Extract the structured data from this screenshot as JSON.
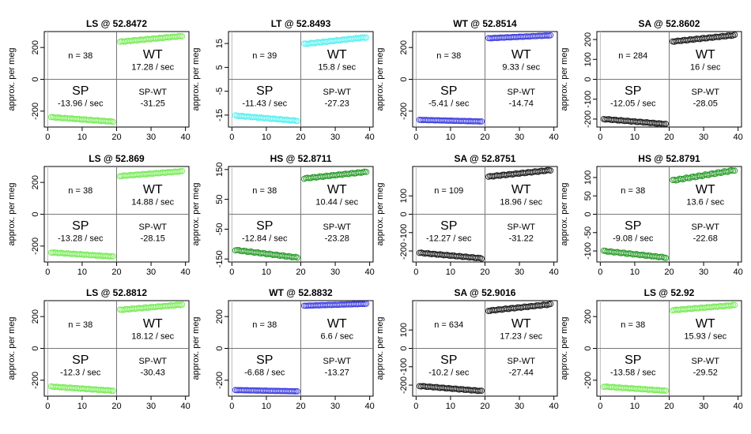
{
  "chart_data": [
    {
      "type": "scatter",
      "title": "LS @ 52.8472",
      "ylabel": "approx. per meg",
      "color": "#7CEB5C",
      "xlim": [
        -1,
        41
      ],
      "ylim": [
        -300,
        300
      ],
      "yticks": [
        -200,
        0,
        200
      ],
      "xticks": [
        0,
        10,
        20,
        30,
        40
      ],
      "n_label": "n = 38",
      "wt_label": "WT",
      "wt_rate": "17.28 / sec",
      "sp_label": "SP",
      "sp_rate": "-13.96 / sec",
      "spwt_label": "SP-WT",
      "spwt_value": "-31.25",
      "left": {
        "x_start": 1,
        "x_end": 19,
        "y_start": -238,
        "y_end": -266
      },
      "right": {
        "x_start": 21,
        "x_end": 39,
        "y_start": 236,
        "y_end": 272
      }
    },
    {
      "type": "scatter",
      "title": "LT @ 52.8493",
      "ylabel": "approx. per meg",
      "color": "#5CF0F0",
      "xlim": [
        -1,
        41
      ],
      "ylim": [
        -20,
        20
      ],
      "yticks": [
        -15,
        -5,
        5,
        15
      ],
      "xticks": [
        0,
        10,
        20,
        30,
        40
      ],
      "n_label": "n = 39",
      "wt_label": "WT",
      "wt_rate": "15.8 / sec",
      "sp_label": "SP",
      "sp_rate": "-11.43 / sec",
      "spwt_label": "SP-WT",
      "spwt_value": "-27.23",
      "left": {
        "x_start": 1,
        "x_end": 19,
        "y_start": -15.2,
        "y_end": -17.4
      },
      "right": {
        "x_start": 21,
        "x_end": 39,
        "y_start": 14.8,
        "y_end": 17.6
      }
    },
    {
      "type": "scatter",
      "title": "WT @ 52.8514",
      "ylabel": "approx. per meg",
      "color": "#4040E0",
      "xlim": [
        -1,
        41
      ],
      "ylim": [
        -300,
        300
      ],
      "yticks": [
        -200,
        0,
        200
      ],
      "xticks": [
        0,
        10,
        20,
        30,
        40
      ],
      "n_label": "n = 38",
      "wt_label": "WT",
      "wt_rate": "9.33 / sec",
      "sp_label": "SP",
      "sp_rate": "-5.41 / sec",
      "spwt_label": "SP-WT",
      "spwt_value": "-14.74",
      "left": {
        "x_start": 1,
        "x_end": 19,
        "y_start": -255,
        "y_end": -265
      },
      "right": {
        "x_start": 21,
        "x_end": 39,
        "y_start": 258,
        "y_end": 276
      }
    },
    {
      "type": "scatter",
      "title": "SA @ 52.8602",
      "ylabel": "approx. per meg",
      "color": "#222222",
      "xlim": [
        -1,
        41
      ],
      "ylim": [
        -240,
        240
      ],
      "yticks": [
        -200,
        -100,
        0,
        100,
        200
      ],
      "xticks": [
        0,
        10,
        20,
        30,
        40
      ],
      "n_label": "n = 284",
      "wt_label": "WT",
      "wt_rate": "16 / sec",
      "sp_label": "SP",
      "sp_rate": "-12.05 / sec",
      "spwt_label": "SP-WT",
      "spwt_value": "-28.05",
      "left": {
        "x_start": 1,
        "x_end": 19,
        "y_start": -200,
        "y_end": -225
      },
      "right": {
        "x_start": 21,
        "x_end": 39,
        "y_start": 190,
        "y_end": 222
      }
    },
    {
      "type": "scatter",
      "title": "LS @ 52.869",
      "ylabel": "approx. per meg",
      "color": "#7CEB5C",
      "xlim": [
        -1,
        41
      ],
      "ylim": [
        -300,
        300
      ],
      "yticks": [
        -200,
        0,
        200
      ],
      "xticks": [
        0,
        10,
        20,
        30,
        40
      ],
      "n_label": "n = 38",
      "wt_label": "WT",
      "wt_rate": "14.88 / sec",
      "sp_label": "SP",
      "sp_rate": "-13.28 / sec",
      "spwt_label": "SP-WT",
      "spwt_value": "-28.15",
      "left": {
        "x_start": 1,
        "x_end": 19,
        "y_start": -240,
        "y_end": -266
      },
      "right": {
        "x_start": 21,
        "x_end": 39,
        "y_start": 240,
        "y_end": 270
      }
    },
    {
      "type": "scatter",
      "title": "HS @ 52.8711",
      "ylabel": "approx. per meg",
      "color": "#2E9E2E",
      "xlim": [
        -1,
        41
      ],
      "ylim": [
        -160,
        160
      ],
      "yticks": [
        -150,
        -50,
        50,
        150
      ],
      "xticks": [
        0,
        10,
        20,
        30,
        40
      ],
      "n_label": "n = 38",
      "wt_label": "WT",
      "wt_rate": "10.44 / sec",
      "sp_label": "SP",
      "sp_rate": "-12.84 / sec",
      "spwt_label": "SP-WT",
      "spwt_value": "-23.28",
      "left": {
        "x_start": 1,
        "x_end": 19,
        "y_start": -120,
        "y_end": -145
      },
      "right": {
        "x_start": 21,
        "x_end": 39,
        "y_start": 120,
        "y_end": 142
      }
    },
    {
      "type": "scatter",
      "title": "SA @ 52.8751",
      "ylabel": "approx. per meg",
      "color": "#222222",
      "xlim": [
        -1,
        41
      ],
      "ylim": [
        -260,
        260
      ],
      "yticks": [
        -200,
        -100,
        0,
        100
      ],
      "xticks": [
        0,
        10,
        20,
        30,
        40
      ],
      "n_label": "n = 109",
      "wt_label": "WT",
      "wt_rate": "18.96 / sec",
      "sp_label": "SP",
      "sp_rate": "-12.27 / sec",
      "spwt_label": "SP-WT",
      "spwt_value": "-31.22",
      "left": {
        "x_start": 1,
        "x_end": 19,
        "y_start": -210,
        "y_end": -240
      },
      "right": {
        "x_start": 21,
        "x_end": 39,
        "y_start": 205,
        "y_end": 240
      }
    },
    {
      "type": "scatter",
      "title": "HS @ 52.8791",
      "ylabel": "approx. per meg",
      "color": "#2E9E2E",
      "xlim": [
        -1,
        41
      ],
      "ylim": [
        -130,
        130
      ],
      "yticks": [
        -100,
        -50,
        0,
        50,
        100
      ],
      "xticks": [
        0,
        10,
        20,
        30,
        40
      ],
      "n_label": "n = 38",
      "wt_label": "WT",
      "wt_rate": "13.6 / sec",
      "sp_label": "SP",
      "sp_rate": "-9.08 / sec",
      "spwt_label": "SP-WT",
      "spwt_value": "-22.68",
      "left": {
        "x_start": 1,
        "x_end": 19,
        "y_start": -100,
        "y_end": -118
      },
      "right": {
        "x_start": 21,
        "x_end": 39,
        "y_start": 92,
        "y_end": 120
      }
    },
    {
      "type": "scatter",
      "title": "LS @ 52.8812",
      "ylabel": "approx. per meg",
      "color": "#7CEB5C",
      "xlim": [
        -1,
        41
      ],
      "ylim": [
        -300,
        300
      ],
      "yticks": [
        -200,
        0,
        200
      ],
      "xticks": [
        0,
        10,
        20,
        30,
        40
      ],
      "n_label": "n = 38",
      "wt_label": "WT",
      "wt_rate": "18.12 / sec",
      "sp_label": "SP",
      "sp_rate": "-12.3 / sec",
      "spwt_label": "SP-WT",
      "spwt_value": "-30.43",
      "left": {
        "x_start": 1,
        "x_end": 19,
        "y_start": -240,
        "y_end": -266
      },
      "right": {
        "x_start": 21,
        "x_end": 39,
        "y_start": 242,
        "y_end": 275
      }
    },
    {
      "type": "scatter",
      "title": "WT @ 52.8832",
      "ylabel": "approx. per meg",
      "color": "#4040E0",
      "xlim": [
        -1,
        41
      ],
      "ylim": [
        -300,
        300
      ],
      "yticks": [
        -200,
        0,
        200
      ],
      "xticks": [
        0,
        10,
        20,
        30,
        40
      ],
      "n_label": "n = 38",
      "wt_label": "WT",
      "wt_rate": "6.6 / sec",
      "sp_label": "SP",
      "sp_rate": "-6.68 / sec",
      "spwt_label": "SP-WT",
      "spwt_value": "-13.27",
      "left": {
        "x_start": 1,
        "x_end": 19,
        "y_start": -262,
        "y_end": -270
      },
      "right": {
        "x_start": 21,
        "x_end": 39,
        "y_start": 268,
        "y_end": 280
      }
    },
    {
      "type": "scatter",
      "title": "SA @ 52.9016",
      "ylabel": "approx. per meg",
      "color": "#222222",
      "xlim": [
        -1,
        41
      ],
      "ylim": [
        -260,
        260
      ],
      "yticks": [
        -200,
        -100,
        0,
        100
      ],
      "xticks": [
        0,
        10,
        20,
        30,
        40
      ],
      "n_label": "n = 634",
      "wt_label": "WT",
      "wt_rate": "17.23 / sec",
      "sp_label": "SP",
      "sp_rate": "-10.2 / sec",
      "spwt_label": "SP-WT",
      "spwt_value": "-27.44",
      "left": {
        "x_start": 1,
        "x_end": 19,
        "y_start": -205,
        "y_end": -232
      },
      "right": {
        "x_start": 21,
        "x_end": 39,
        "y_start": 205,
        "y_end": 240
      }
    },
    {
      "type": "scatter",
      "title": "LS @ 52.92",
      "ylabel": "approx. per meg",
      "color": "#7CEB5C",
      "xlim": [
        -1,
        41
      ],
      "ylim": [
        -300,
        300
      ],
      "yticks": [
        -200,
        0,
        200
      ],
      "xticks": [
        0,
        10,
        20,
        30,
        40
      ],
      "n_label": "n = 38",
      "wt_label": "WT",
      "wt_rate": "15.93 / sec",
      "sp_label": "SP",
      "sp_rate": "-13.58 / sec",
      "spwt_label": "SP-WT",
      "spwt_value": "-29.52",
      "left": {
        "x_start": 1,
        "x_end": 19,
        "y_start": -240,
        "y_end": -266
      },
      "right": {
        "x_start": 21,
        "x_end": 39,
        "y_start": 240,
        "y_end": 272
      }
    }
  ]
}
